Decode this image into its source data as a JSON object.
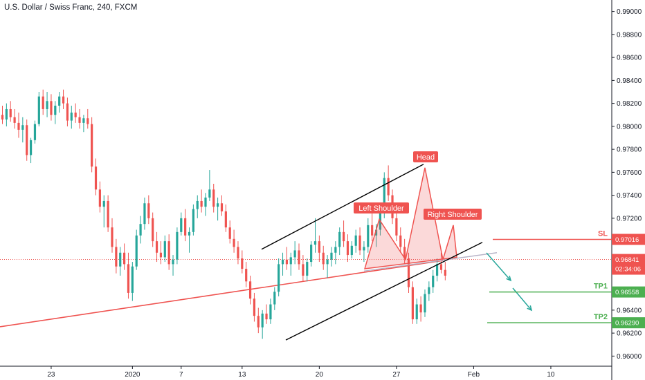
{
  "header": {
    "symbol_title": "U.S. Dollar / Swiss Franc, 240, FXCM"
  },
  "colors": {
    "up": "#26a69a",
    "down": "#ef5350",
    "trend": "#000000",
    "neckline": "#b8b4c8",
    "current_price": "#ef5350",
    "level_green": "#4caf50",
    "level_red": "#ef5350"
  },
  "chart_data": {
    "type": "candlestick",
    "title": "U.S. Dollar / Swiss Franc, 240, FXCM",
    "ylim": [
      0.959,
      0.991
    ],
    "y_ticks": [
      "0.99000",
      "0.98800",
      "0.98600",
      "0.98400",
      "0.98200",
      "0.98000",
      "0.97800",
      "0.97600",
      "0.97400",
      "0.97200",
      "0.96400",
      "0.96200",
      "0.96000"
    ],
    "x_ticks": [
      {
        "label": "23",
        "idx": 12
      },
      {
        "label": "2020",
        "idx": 32
      },
      {
        "label": "7",
        "idx": 44
      },
      {
        "label": "13",
        "idx": 59
      },
      {
        "label": "20",
        "idx": 78
      },
      {
        "label": "27",
        "idx": 97
      },
      {
        "label": "Feb",
        "idx": 116
      },
      {
        "label": "10",
        "idx": 135
      }
    ],
    "candles": [
      [
        0.981,
        0.9818,
        0.9802,
        0.9806
      ],
      [
        0.9806,
        0.982,
        0.98,
        0.9815
      ],
      [
        0.9815,
        0.9822,
        0.9804,
        0.9808
      ],
      [
        0.9808,
        0.9815,
        0.9798,
        0.9803
      ],
      [
        0.9803,
        0.9812,
        0.979,
        0.9797
      ],
      [
        0.9797,
        0.9808,
        0.9786,
        0.9801
      ],
      [
        0.9801,
        0.9806,
        0.977,
        0.9775
      ],
      [
        0.9775,
        0.979,
        0.9768,
        0.9788
      ],
      [
        0.9788,
        0.9805,
        0.9785,
        0.9802
      ],
      [
        0.9802,
        0.983,
        0.98,
        0.9826
      ],
      [
        0.9826,
        0.9832,
        0.981,
        0.9815
      ],
      [
        0.9815,
        0.983,
        0.9808,
        0.9822
      ],
      [
        0.9822,
        0.9828,
        0.9805,
        0.981
      ],
      [
        0.981,
        0.9822,
        0.9802,
        0.9818
      ],
      [
        0.9818,
        0.983,
        0.9812,
        0.9826
      ],
      [
        0.9826,
        0.9832,
        0.9815,
        0.982
      ],
      [
        0.982,
        0.9825,
        0.98,
        0.9805
      ],
      [
        0.9805,
        0.9818,
        0.9798,
        0.9812
      ],
      [
        0.9812,
        0.982,
        0.9803,
        0.9808
      ],
      [
        0.9808,
        0.9815,
        0.9798,
        0.9803
      ],
      [
        0.9803,
        0.981,
        0.9795,
        0.9807
      ],
      [
        0.9807,
        0.9815,
        0.9798,
        0.9802
      ],
      [
        0.9802,
        0.9808,
        0.976,
        0.9765
      ],
      [
        0.9765,
        0.9772,
        0.974,
        0.9745
      ],
      [
        0.9745,
        0.9752,
        0.9725,
        0.973
      ],
      [
        0.973,
        0.974,
        0.9712,
        0.9735
      ],
      [
        0.9735,
        0.974,
        0.9708,
        0.9712
      ],
      [
        0.9712,
        0.972,
        0.969,
        0.9695
      ],
      [
        0.9695,
        0.9702,
        0.9672,
        0.9678
      ],
      [
        0.9678,
        0.9695,
        0.967,
        0.969
      ],
      [
        0.969,
        0.9698,
        0.9675,
        0.968
      ],
      [
        0.968,
        0.969,
        0.965,
        0.9655
      ],
      [
        0.9655,
        0.9682,
        0.9648,
        0.9678
      ],
      [
        0.9678,
        0.971,
        0.9675,
        0.9705
      ],
      [
        0.9705,
        0.9722,
        0.9698,
        0.9715
      ],
      [
        0.9715,
        0.9738,
        0.971,
        0.9733
      ],
      [
        0.9733,
        0.974,
        0.9715,
        0.972
      ],
      [
        0.972,
        0.9725,
        0.9695,
        0.97
      ],
      [
        0.97,
        0.9708,
        0.9682,
        0.969
      ],
      [
        0.969,
        0.97,
        0.968,
        0.9686
      ],
      [
        0.9686,
        0.9705,
        0.9682,
        0.97
      ],
      [
        0.97,
        0.9706,
        0.9675,
        0.968
      ],
      [
        0.968,
        0.9688,
        0.967,
        0.9684
      ],
      [
        0.9684,
        0.9712,
        0.968,
        0.9708
      ],
      [
        0.9708,
        0.9725,
        0.9705,
        0.972
      ],
      [
        0.972,
        0.9728,
        0.97,
        0.9705
      ],
      [
        0.9705,
        0.9712,
        0.969,
        0.9708
      ],
      [
        0.9708,
        0.9732,
        0.9705,
        0.9728
      ],
      [
        0.9728,
        0.974,
        0.972,
        0.9735
      ],
      [
        0.9735,
        0.9745,
        0.9725,
        0.973
      ],
      [
        0.973,
        0.9742,
        0.9722,
        0.9738
      ],
      [
        0.9738,
        0.9762,
        0.9735,
        0.9745
      ],
      [
        0.9745,
        0.975,
        0.9725,
        0.973
      ],
      [
        0.973,
        0.9738,
        0.9718,
        0.9733
      ],
      [
        0.9733,
        0.974,
        0.9722,
        0.9726
      ],
      [
        0.9726,
        0.9732,
        0.9708,
        0.9712
      ],
      [
        0.9712,
        0.9718,
        0.9698,
        0.9702
      ],
      [
        0.9702,
        0.971,
        0.969,
        0.9695
      ],
      [
        0.9695,
        0.97,
        0.968,
        0.9685
      ],
      [
        0.9685,
        0.9692,
        0.9672,
        0.9676
      ],
      [
        0.9676,
        0.9682,
        0.966,
        0.9665
      ],
      [
        0.9665,
        0.967,
        0.9645,
        0.965
      ],
      [
        0.965,
        0.9655,
        0.963,
        0.9635
      ],
      [
        0.9635,
        0.9642,
        0.962,
        0.9625
      ],
      [
        0.9625,
        0.964,
        0.9615,
        0.9637
      ],
      [
        0.9637,
        0.9645,
        0.9628,
        0.9632
      ],
      [
        0.9632,
        0.965,
        0.9628,
        0.9645
      ],
      [
        0.9645,
        0.966,
        0.964,
        0.9656
      ],
      [
        0.9656,
        0.9685,
        0.9652,
        0.968
      ],
      [
        0.968,
        0.969,
        0.967,
        0.9684
      ],
      [
        0.9684,
        0.9695,
        0.9675,
        0.968
      ],
      [
        0.968,
        0.969,
        0.967,
        0.9686
      ],
      [
        0.9686,
        0.97,
        0.968,
        0.9692
      ],
      [
        0.9692,
        0.9698,
        0.9675,
        0.968
      ],
      [
        0.968,
        0.9688,
        0.9665,
        0.967
      ],
      [
        0.967,
        0.9685,
        0.9665,
        0.9682
      ],
      [
        0.9682,
        0.97,
        0.9678,
        0.9697
      ],
      [
        0.9697,
        0.972,
        0.969,
        0.97
      ],
      [
        0.97,
        0.9705,
        0.9682,
        0.969
      ],
      [
        0.969,
        0.9696,
        0.9675,
        0.968
      ],
      [
        0.968,
        0.9688,
        0.9668,
        0.9684
      ],
      [
        0.9684,
        0.9695,
        0.9678,
        0.969
      ],
      [
        0.969,
        0.97,
        0.968,
        0.9695
      ],
      [
        0.9695,
        0.9712,
        0.9688,
        0.9708
      ],
      [
        0.9708,
        0.9718,
        0.9695,
        0.97
      ],
      [
        0.97,
        0.9706,
        0.9682,
        0.9688
      ],
      [
        0.9688,
        0.97,
        0.9685,
        0.9696
      ],
      [
        0.9696,
        0.971,
        0.969,
        0.9705
      ],
      [
        0.9705,
        0.9712,
        0.9688,
        0.9692
      ],
      [
        0.9692,
        0.97,
        0.9682,
        0.9695
      ],
      [
        0.9695,
        0.972,
        0.969,
        0.9714
      ],
      [
        0.9714,
        0.9725,
        0.97,
        0.9705
      ],
      [
        0.9705,
        0.9715,
        0.9695,
        0.971
      ],
      [
        0.971,
        0.973,
        0.9705,
        0.9725
      ],
      [
        0.9725,
        0.976,
        0.972,
        0.9755
      ],
      [
        0.9755,
        0.9766,
        0.9735,
        0.974
      ],
      [
        0.974,
        0.9745,
        0.9715,
        0.972
      ],
      [
        0.972,
        0.9728,
        0.97,
        0.9705
      ],
      [
        0.9705,
        0.9712,
        0.969,
        0.9695
      ],
      [
        0.9695,
        0.9702,
        0.968,
        0.9685
      ],
      [
        0.9685,
        0.969,
        0.9655,
        0.966
      ],
      [
        0.966,
        0.9665,
        0.9628,
        0.9632
      ],
      [
        0.9632,
        0.965,
        0.9628,
        0.9645
      ],
      [
        0.9645,
        0.9652,
        0.963,
        0.9638
      ],
      [
        0.9638,
        0.9658,
        0.9634,
        0.9654
      ],
      [
        0.9654,
        0.9665,
        0.9648,
        0.966
      ],
      [
        0.966,
        0.9675,
        0.9655,
        0.967
      ],
      [
        0.967,
        0.9685,
        0.9665,
        0.968
      ],
      [
        0.968,
        0.969,
        0.9672,
        0.9675
      ],
      [
        0.9675,
        0.9682,
        0.9666,
        0.967
      ]
    ],
    "annotations": [
      {
        "label": "Head",
        "color": "#ef5350"
      },
      {
        "label": "Left Shoulder",
        "color": "#ef5350"
      },
      {
        "label": "Right Shoulder",
        "color": "#ef5350"
      }
    ],
    "levels": [
      {
        "name": "SL",
        "value": 0.97016,
        "price_label": "0.97016",
        "color": "#ef5350"
      },
      {
        "name": "TP1",
        "value": 0.96558,
        "price_label": "0.96558",
        "color": "#4caf50"
      },
      {
        "name": "TP2",
        "value": 0.9629,
        "price_label": "0.96290",
        "color": "#4caf50"
      }
    ],
    "current_price": {
      "value": 0.96841,
      "label": "0.96841",
      "countdown": "02:34:06"
    },
    "grid": false
  }
}
